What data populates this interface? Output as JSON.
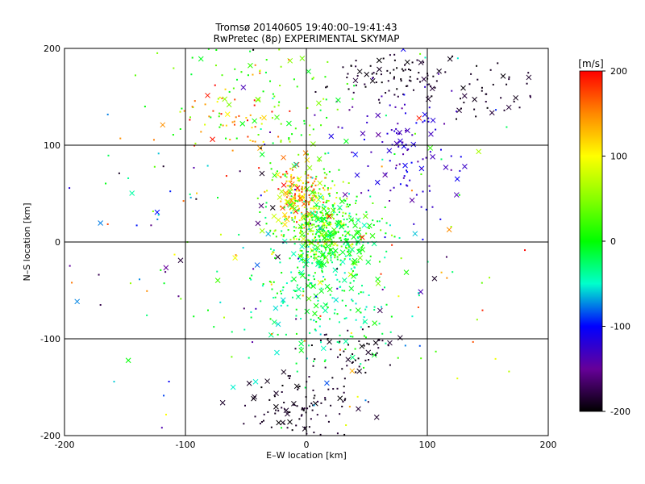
{
  "chart_data": {
    "type": "scatter",
    "title": "Tromsø 20140605 19:40:00–19:41:43",
    "subtitle": "RwPretec (8p) EXPERIMENTAL SKYMAP",
    "xlabel": "E–W location [km]",
    "ylabel": "N–S location [km]",
    "xlim": [
      -200,
      200
    ],
    "ylim": [
      -200,
      200
    ],
    "xticks": [
      -200,
      -100,
      0,
      100,
      200
    ],
    "yticks": [
      -200,
      -100,
      0,
      100,
      200
    ],
    "grid": true,
    "colorbar": {
      "label": "[m/s]",
      "range": [
        -200,
        200
      ],
      "ticks": [
        200,
        100,
        0,
        -100,
        -200
      ],
      "colormap": "rainbow (black-purple-blue-cyan-green-yellow-red)"
    },
    "marker_kinds": [
      "dot",
      "cross"
    ],
    "clusters": [
      {
        "center": [
          -5,
          45
        ],
        "spread": [
          10,
          15
        ],
        "count": 120,
        "value_range": [
          100,
          200
        ]
      },
      {
        "center": [
          5,
          30
        ],
        "spread": [
          18,
          25
        ],
        "count": 230,
        "value_range": [
          0,
          100
        ]
      },
      {
        "center": [
          22,
          5
        ],
        "spread": [
          18,
          20
        ],
        "count": 260,
        "value_range": [
          -40,
          40
        ]
      },
      {
        "center": [
          10,
          -40
        ],
        "spread": [
          28,
          45
        ],
        "count": 280,
        "value_range": [
          -60,
          10
        ]
      },
      {
        "center": [
          75,
          170
        ],
        "spread": [
          25,
          12
        ],
        "count": 90,
        "value_range": [
          -200,
          -180
        ]
      },
      {
        "center": [
          160,
          150
        ],
        "spread": [
          22,
          15
        ],
        "count": 40,
        "value_range": [
          -200,
          -180
        ]
      },
      {
        "center": [
          80,
          90
        ],
        "spread": [
          25,
          35
        ],
        "count": 110,
        "value_range": [
          -150,
          -100
        ]
      },
      {
        "center": [
          -5,
          -170
        ],
        "spread": [
          22,
          18
        ],
        "count": 110,
        "value_range": [
          -200,
          -180
        ]
      },
      {
        "center": [
          40,
          -110
        ],
        "spread": [
          20,
          12
        ],
        "count": 50,
        "value_range": [
          -200,
          -180
        ]
      },
      {
        "center": [
          -40,
          150
        ],
        "spread": [
          40,
          30
        ],
        "count": 90,
        "value_range": [
          -20,
          60
        ]
      },
      {
        "center": [
          -60,
          130
        ],
        "spread": [
          25,
          25
        ],
        "count": 50,
        "value_range": [
          100,
          200
        ]
      },
      {
        "center": [
          0,
          0
        ],
        "spread": [
          110,
          110
        ],
        "count": 250,
        "value_range": [
          -200,
          200
        ]
      }
    ]
  }
}
